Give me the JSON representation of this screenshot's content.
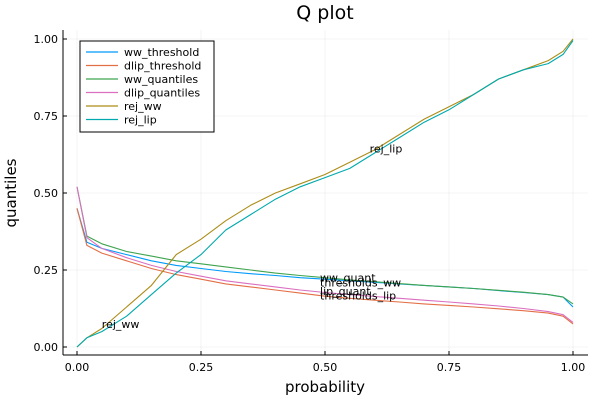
{
  "chart_data": {
    "type": "line",
    "title": "Q plot",
    "xlabel": "probability",
    "ylabel": "quantiles",
    "xlim": [
      0,
      1
    ],
    "ylim": [
      0,
      1
    ],
    "xticks": [
      0,
      0.25,
      0.5,
      0.75,
      1
    ],
    "xtick_labels": [
      "0.00",
      "0.25",
      "0.50",
      "0.75",
      "1.00"
    ],
    "yticks": [
      0,
      0.25,
      0.5,
      0.75,
      1
    ],
    "ytick_labels": [
      "0.00",
      "0.25",
      "0.50",
      "0.75",
      "1.00"
    ],
    "grid": true,
    "legend_position": "top-left",
    "x": [
      0.0,
      0.02,
      0.05,
      0.1,
      0.15,
      0.2,
      0.25,
      0.3,
      0.35,
      0.4,
      0.45,
      0.5,
      0.55,
      0.6,
      0.65,
      0.7,
      0.75,
      0.8,
      0.85,
      0.9,
      0.95,
      0.98,
      1.0
    ],
    "series": [
      {
        "name": "ww_threshold",
        "color": "#009AFA",
        "values": [
          0.45,
          0.34,
          0.32,
          0.3,
          0.28,
          0.265,
          0.255,
          0.245,
          0.238,
          0.232,
          0.225,
          0.22,
          0.215,
          0.21,
          0.205,
          0.2,
          0.195,
          0.19,
          0.183,
          0.177,
          0.17,
          0.162,
          0.13
        ]
      },
      {
        "name": "dlip_threshold",
        "color": "#E36F47",
        "values": [
          0.45,
          0.33,
          0.305,
          0.28,
          0.255,
          0.235,
          0.22,
          0.205,
          0.195,
          0.185,
          0.175,
          0.165,
          0.158,
          0.152,
          0.146,
          0.14,
          0.135,
          0.13,
          0.124,
          0.118,
          0.11,
          0.1,
          0.075
        ]
      },
      {
        "name": "ww_quantiles",
        "color": "#3EA44E",
        "values": [
          0.52,
          0.36,
          0.335,
          0.31,
          0.295,
          0.28,
          0.27,
          0.26,
          0.25,
          0.24,
          0.232,
          0.225,
          0.218,
          0.212,
          0.206,
          0.2,
          0.195,
          0.19,
          0.184,
          0.178,
          0.17,
          0.162,
          0.14
        ]
      },
      {
        "name": "dlip_quantiles",
        "color": "#DA6FC0",
        "values": [
          0.52,
          0.355,
          0.32,
          0.29,
          0.265,
          0.245,
          0.23,
          0.215,
          0.205,
          0.195,
          0.185,
          0.177,
          0.17,
          0.164,
          0.158,
          0.152,
          0.146,
          0.14,
          0.133,
          0.125,
          0.115,
          0.105,
          0.08
        ]
      },
      {
        "name": "rej_ww",
        "color": "#AC8D18",
        "values": [
          0.0,
          0.03,
          0.06,
          0.13,
          0.2,
          0.3,
          0.35,
          0.41,
          0.46,
          0.5,
          0.53,
          0.56,
          0.6,
          0.64,
          0.69,
          0.74,
          0.78,
          0.82,
          0.87,
          0.9,
          0.93,
          0.96,
          1.0
        ]
      },
      {
        "name": "rej_lip",
        "color": "#00A9AD",
        "values": [
          0.0,
          0.03,
          0.05,
          0.1,
          0.17,
          0.24,
          0.3,
          0.38,
          0.43,
          0.48,
          0.52,
          0.55,
          0.58,
          0.63,
          0.68,
          0.73,
          0.77,
          0.82,
          0.87,
          0.9,
          0.92,
          0.95,
          0.995
        ]
      }
    ],
    "annotations": [
      {
        "text": "rej_ww",
        "x": 0.05,
        "y": 0.075
      },
      {
        "text": "rej_lip",
        "x": 0.59,
        "y": 0.645
      },
      {
        "text": "ww_quant",
        "x": 0.49,
        "y": 0.225
      },
      {
        "text": "thresholds_ww",
        "x": 0.49,
        "y": 0.21
      },
      {
        "text": "lip_quant",
        "x": 0.49,
        "y": 0.182
      },
      {
        "text": "thresholds_lip",
        "x": 0.49,
        "y": 0.168
      }
    ]
  }
}
